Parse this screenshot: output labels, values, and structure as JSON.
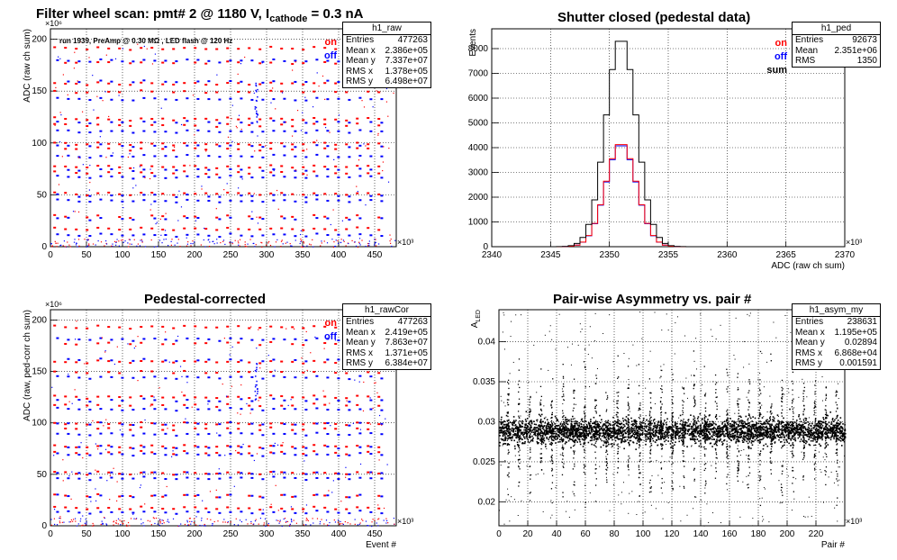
{
  "charts": [
    {
      "id": "raw",
      "title": "Filter wheel scan: pmt#   2 @  1180 V, I",
      "title_sub": "cathode",
      "title_suffix": " = 0.3 nA",
      "note": "run 1939, PreAmp @ 0.30 MΩ , LED flash @  120 Hz",
      "legend": [
        "on",
        "off"
      ],
      "stats": {
        "name": "h1_raw",
        "rows": [
          {
            "label": "Entries",
            "value": "477263"
          },
          {
            "label": "Mean x",
            "value": "2.386e+05"
          },
          {
            "label": "Mean y",
            "value": "7.337e+07"
          },
          {
            "label": "RMS x",
            "value": "1.378e+05"
          },
          {
            "label": "RMS y",
            "value": "6.498e+07"
          }
        ]
      },
      "ylabel": "ADC (raw ch sum)",
      "xlabel": "Event #",
      "yexp": "×10⁶",
      "xexp": "×10³"
    },
    {
      "id": "ped",
      "title": "Shutter closed (pedestal data)",
      "legend": [
        "on",
        "off",
        "sum"
      ],
      "stats": {
        "name": "h1_ped",
        "rows": [
          {
            "label": "Entries",
            "value": "92673"
          },
          {
            "label": "Mean",
            "value": "2.351e+06"
          },
          {
            "label": "RMS",
            "value": "1350"
          }
        ]
      },
      "ylabel": "Events",
      "xlabel": "ADC (raw ch sum)",
      "xexp": "×10³"
    },
    {
      "id": "cor",
      "title": "Pedestal-corrected",
      "legend": [
        "on",
        "off"
      ],
      "stats": {
        "name": "h1_rawCor",
        "rows": [
          {
            "label": "Entries",
            "value": "477263"
          },
          {
            "label": "Mean x",
            "value": "2.419e+05"
          },
          {
            "label": "Mean y",
            "value": "7.863e+07"
          },
          {
            "label": "RMS x",
            "value": "1.371e+05"
          },
          {
            "label": "RMS y",
            "value": "6.384e+07"
          }
        ]
      },
      "ylabel": "ADC (raw, ped-corr ch sum)",
      "xlabel": "Event #",
      "yexp": "×10⁶",
      "xexp": "×10³"
    },
    {
      "id": "asym",
      "title": "Pair-wise Asymmetry vs. pair #",
      "stats": {
        "name": "h1_asym_my",
        "rows": [
          {
            "label": "Entries",
            "value": "238631"
          },
          {
            "label": "Mean x",
            "value": "1.195e+05"
          },
          {
            "label": "Mean y",
            "value": "0.02894"
          },
          {
            "label": "RMS x",
            "value": "6.868e+04"
          },
          {
            "label": "RMS y",
            "value": "0.001591"
          }
        ]
      },
      "ylabel": "A",
      "ylabel_sub": "LED",
      "xlabel": "Pair #",
      "xexp": "×10³"
    }
  ],
  "chart_data": [
    {
      "type": "scatter",
      "name": "raw",
      "x_range": [
        0,
        480
      ],
      "ylim": [
        0,
        210
      ],
      "xticks": [
        0,
        50,
        100,
        150,
        200,
        250,
        300,
        350,
        400,
        450
      ],
      "yticks": [
        0,
        50,
        100,
        150,
        200
      ],
      "grid": true,
      "bands_on": [
        192,
        178,
        158,
        150,
        124,
        118,
        100,
        95,
        78,
        72,
        52,
        30,
        18
      ],
      "bands_off": [
        180,
        160,
        143,
        121,
        112,
        98,
        88,
        75,
        68,
        50,
        45,
        28,
        12
      ],
      "step_period": 15,
      "series": [
        {
          "name": "on",
          "color": "#ff0000"
        },
        {
          "name": "off",
          "color": "#0000ff"
        }
      ]
    },
    {
      "type": "line",
      "name": "ped",
      "x_range": [
        2340,
        2370
      ],
      "ylim": [
        0,
        8800
      ],
      "xticks": [
        2340,
        2345,
        2350,
        2355,
        2360,
        2365,
        2370
      ],
      "yticks": [
        0,
        1000,
        2000,
        3000,
        4000,
        5000,
        6000,
        7000,
        8000
      ],
      "grid": true,
      "peak_center": 2351,
      "series": [
        {
          "name": "sum",
          "color": "#000000",
          "peak": 8450,
          "sigma": 1.3
        },
        {
          "name": "on",
          "color": "#ff0000",
          "peak": 4200,
          "sigma": 1.3
        },
        {
          "name": "off",
          "color": "#0000ff",
          "peak": 4150,
          "sigma": 1.3
        }
      ]
    },
    {
      "type": "scatter",
      "name": "cor",
      "x_range": [
        0,
        480
      ],
      "ylim": [
        0,
        210
      ],
      "xticks": [
        0,
        50,
        100,
        150,
        200,
        250,
        300,
        350,
        400,
        450
      ],
      "yticks": [
        0,
        50,
        100,
        150,
        200
      ],
      "grid": true,
      "bands_on": [
        194,
        178,
        160,
        150,
        126,
        118,
        100,
        95,
        78,
        72,
        52,
        30,
        18
      ],
      "bands_off": [
        182,
        162,
        145,
        123,
        114,
        100,
        90,
        77,
        70,
        52,
        47,
        30,
        14
      ],
      "step_period": 15,
      "series": [
        {
          "name": "on",
          "color": "#ff0000"
        },
        {
          "name": "off",
          "color": "#0000ff"
        }
      ]
    },
    {
      "type": "scatter",
      "name": "asym",
      "x_range": [
        0,
        240
      ],
      "ylim": [
        0.017,
        0.044
      ],
      "xticks": [
        0,
        20,
        40,
        60,
        80,
        100,
        120,
        140,
        160,
        180,
        200,
        220
      ],
      "yticks": [
        0.02,
        0.025,
        0.03,
        0.035,
        0.04
      ],
      "grid": true,
      "band_center": 0.0289,
      "band_width": 0.0016,
      "spike_period": 7.6,
      "series": [
        {
          "name": "h1_asym_my",
          "color": "#000000"
        }
      ]
    }
  ]
}
